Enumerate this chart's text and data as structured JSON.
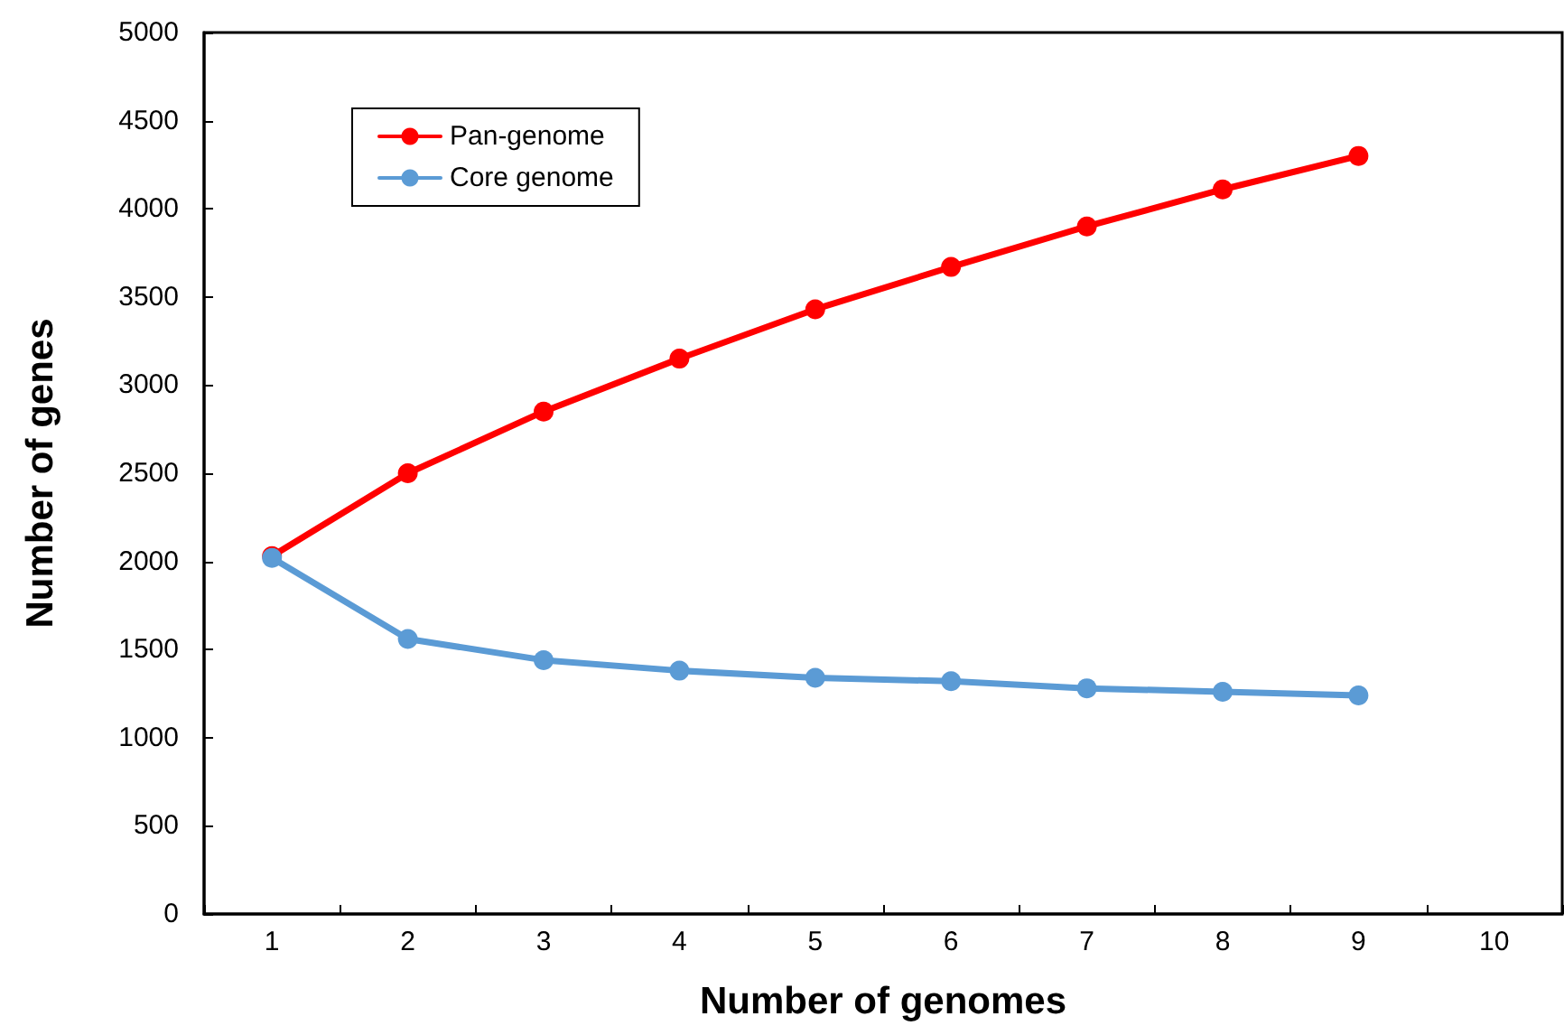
{
  "chart_data": {
    "type": "line",
    "xlabel": "Number of genomes",
    "ylabel": "Number of genes",
    "categories": [
      "1",
      "2",
      "3",
      "4",
      "5",
      "6",
      "7",
      "8",
      "9",
      "10"
    ],
    "series": [
      {
        "name": "Pan-genome",
        "color": "#ff0000",
        "values": [
          2030,
          2500,
          2850,
          3150,
          3430,
          3670,
          3900,
          4110,
          4300,
          null
        ]
      },
      {
        "name": "Core genome",
        "color": "#5b9bd5",
        "values": [
          2020,
          1560,
          1440,
          1380,
          1340,
          1320,
          1280,
          1260,
          1240,
          null
        ]
      }
    ],
    "ylim": [
      0,
      5000
    ],
    "yticks": [
      0,
      500,
      1000,
      1500,
      2000,
      2500,
      3000,
      3500,
      4000,
      4500,
      5000
    ],
    "grid": false,
    "legend": "top left",
    "marker": "circle",
    "line_style": "solid"
  }
}
